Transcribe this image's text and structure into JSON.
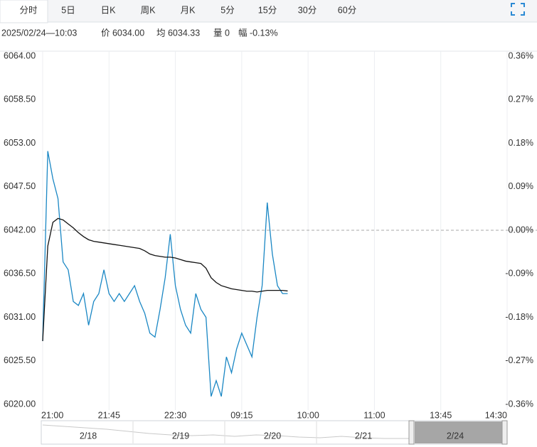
{
  "tabs": [
    "分时",
    "5日",
    "日K",
    "周K",
    "月K",
    "5分",
    "15分",
    "30分",
    "60分"
  ],
  "info": [
    "2025/02/24—10:03",
    "价 6034.00",
    "均 6034.33",
    "量 0",
    "幅 -0.13%"
  ],
  "chart_data": {
    "type": "line",
    "categories": [
      "21:00",
      null,
      null,
      null,
      null,
      null,
      null,
      null,
      null,
      null,
      null,
      null,
      null,
      "21:45",
      null,
      null,
      null,
      null,
      null,
      null,
      null,
      null,
      null,
      null,
      null,
      null,
      "22:30",
      null,
      null,
      null,
      null,
      null,
      null,
      null,
      null,
      null,
      null,
      null,
      null,
      "09:15",
      null,
      null,
      null,
      null,
      null,
      null,
      null,
      null,
      null,
      null,
      null,
      null,
      "10:00",
      null,
      null,
      null,
      null,
      null,
      null,
      null,
      null,
      null,
      null,
      null,
      null,
      "11:00",
      null,
      null,
      null,
      null,
      null,
      null,
      null,
      null,
      null,
      null,
      null,
      null,
      "13:45",
      null,
      null,
      null,
      null,
      null,
      null,
      null,
      null,
      null,
      null,
      null,
      null,
      "14:30"
    ],
    "series": [
      {
        "color": "#1a87c4",
        "values": [
          6028,
          6052,
          6048.5,
          6046,
          6038,
          6037,
          6033,
          6032.5,
          6034,
          6030,
          6033,
          6034,
          6037,
          6034,
          6033,
          6034,
          6033,
          6034,
          6035,
          6033,
          6031.5,
          6029,
          6028.5,
          6032,
          6036,
          6041.5,
          6035,
          6032,
          6030,
          6029,
          6034,
          6032,
          6031,
          6021,
          6023,
          6021,
          6026,
          6024,
          6027,
          6029,
          6027.5,
          6026,
          6031,
          6035,
          6045.5,
          6039,
          6035,
          6034,
          6034,
          null,
          null,
          null,
          null,
          null,
          null,
          null,
          null,
          null,
          null,
          null,
          null,
          null,
          null,
          null,
          null,
          null,
          null,
          null,
          null,
          null,
          null,
          null,
          null,
          null,
          null,
          null,
          null,
          null,
          null,
          null,
          null,
          null,
          null,
          null,
          null,
          null,
          null,
          null,
          null,
          null,
          null,
          null
        ]
      },
      {
        "color": "#111111",
        "values": [
          6028,
          6040,
          6043,
          6043.5,
          6043.3,
          6042.8,
          6042.3,
          6041.7,
          6041.2,
          6040.8,
          6040.6,
          6040.5,
          6040.4,
          6040.3,
          6040.2,
          6040.1,
          6040,
          6039.9,
          6039.8,
          6039.7,
          6039.4,
          6039,
          6038.8,
          6038.7,
          6038.6,
          6038.6,
          6038.5,
          6038.3,
          6038.1,
          6038,
          6037.9,
          6037.8,
          6037.2,
          6036,
          6035.4,
          6035,
          6034.8,
          6034.6,
          6034.5,
          6034.4,
          6034.3,
          6034.3,
          6034.2,
          6034.3,
          6034.4,
          6034.4,
          6034.4,
          6034.4,
          6034.33,
          null,
          null,
          null,
          null,
          null,
          null,
          null,
          null,
          null,
          null,
          null,
          null,
          null,
          null,
          null,
          null,
          null,
          null,
          null,
          null,
          null,
          null,
          null,
          null,
          null,
          null,
          null,
          null,
          null,
          null,
          null,
          null,
          null,
          null,
          null,
          null,
          null,
          null,
          null,
          null,
          null,
          null,
          null
        ]
      }
    ],
    "baseline": 6042,
    "ylim": [
      6020,
      6064
    ],
    "yticks": [
      {
        "value": 6064,
        "label": "6064.00"
      },
      {
        "value": 6058.5,
        "label": "6058.50"
      },
      {
        "value": 6053,
        "label": "6053.00"
      },
      {
        "value": 6047.5,
        "label": "6047.50"
      },
      {
        "value": 6042,
        "label": "6042.00"
      },
      {
        "value": 6036.5,
        "label": "6036.50"
      },
      {
        "value": 6031,
        "label": "6031.00"
      },
      {
        "value": 6025.5,
        "label": "6025.50"
      },
      {
        "value": 6020,
        "label": "6020.00"
      }
    ],
    "y2lim": [
      -0.36,
      0.36
    ],
    "y2ticks": [
      {
        "value": 0.36,
        "label": "0.36%"
      },
      {
        "value": 0.27,
        "label": "0.27%"
      },
      {
        "value": 0.18,
        "label": "0.18%"
      },
      {
        "value": 0.09,
        "label": "0.09%"
      },
      {
        "value": 0,
        "label": "0.00%"
      },
      {
        "value": -0.09,
        "label": "-0.09%"
      },
      {
        "value": -0.18,
        "label": "-0.18%"
      },
      {
        "value": -0.27,
        "label": "-0.27%"
      },
      {
        "value": -0.36,
        "label": "-0.36%"
      }
    ],
    "up_color": "#e0302a",
    "down_color": "#1e9e1e",
    "flat_color": "#333333"
  },
  "navigator": {
    "labels": [
      "2/18",
      "2/19",
      "2/20",
      "2/21",
      "2/24"
    ]
  }
}
